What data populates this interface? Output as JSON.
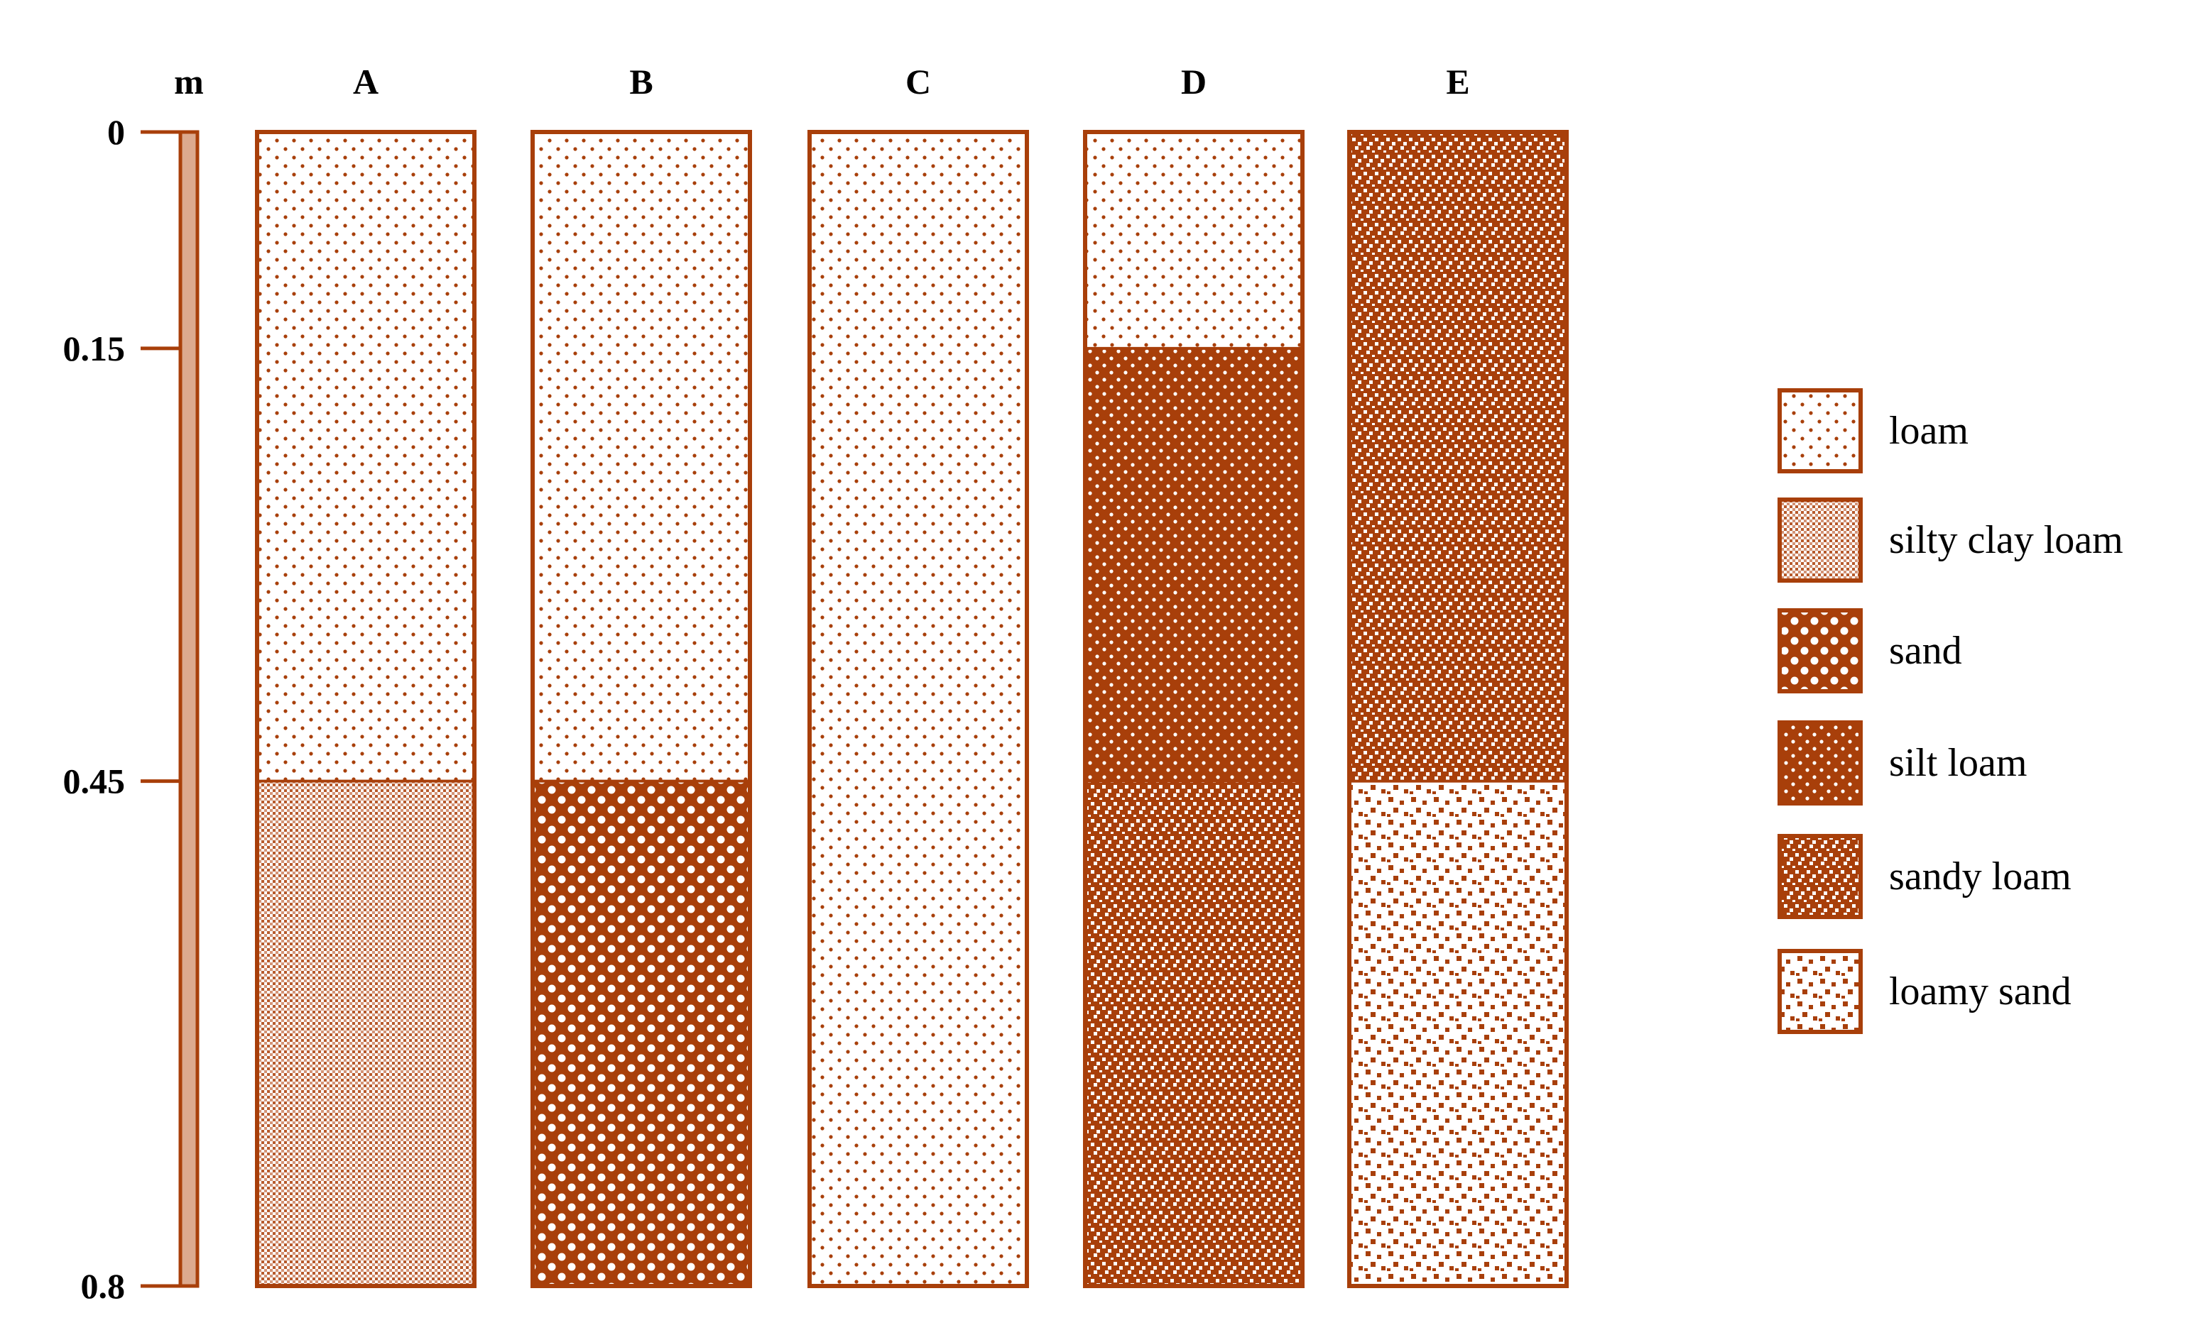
{
  "unit": "m",
  "depth_ticks": [
    {
      "value": 0,
      "label": "0"
    },
    {
      "value": 0.15,
      "label": "0.15"
    },
    {
      "value": 0.45,
      "label": "0.45"
    },
    {
      "value": 0.8,
      "label": "0.8"
    }
  ],
  "max_depth": 0.8,
  "colors": {
    "stroke": "#a83f0a",
    "scale_fill": "#dca98e",
    "text": "#000000"
  },
  "soil_types": [
    {
      "key": "loam",
      "label": "loam"
    },
    {
      "key": "silty_clay_loam",
      "label": "silty clay loam"
    },
    {
      "key": "sand",
      "label": "sand"
    },
    {
      "key": "silt_loam",
      "label": "silt loam"
    },
    {
      "key": "sandy_loam",
      "label": "sandy loam"
    },
    {
      "key": "loamy_sand",
      "label": "loamy sand"
    }
  ],
  "profiles": [
    {
      "label": "A",
      "layers": [
        {
          "top": 0,
          "bottom": 0.45,
          "soil": "loam"
        },
        {
          "top": 0.45,
          "bottom": 0.8,
          "soil": "silty_clay_loam"
        }
      ]
    },
    {
      "label": "B",
      "layers": [
        {
          "top": 0,
          "bottom": 0.45,
          "soil": "loam"
        },
        {
          "top": 0.45,
          "bottom": 0.8,
          "soil": "sand"
        }
      ]
    },
    {
      "label": "C",
      "layers": [
        {
          "top": 0,
          "bottom": 0.8,
          "soil": "loam"
        }
      ]
    },
    {
      "label": "D",
      "layers": [
        {
          "top": 0,
          "bottom": 0.15,
          "soil": "loam"
        },
        {
          "top": 0.15,
          "bottom": 0.45,
          "soil": "silt_loam"
        },
        {
          "top": 0.45,
          "bottom": 0.8,
          "soil": "sandy_loam"
        }
      ]
    },
    {
      "label": "E",
      "layers": [
        {
          "top": 0,
          "bottom": 0.45,
          "soil": "sandy_loam"
        },
        {
          "top": 0.45,
          "bottom": 0.8,
          "soil": "loamy_sand"
        }
      ]
    }
  ]
}
